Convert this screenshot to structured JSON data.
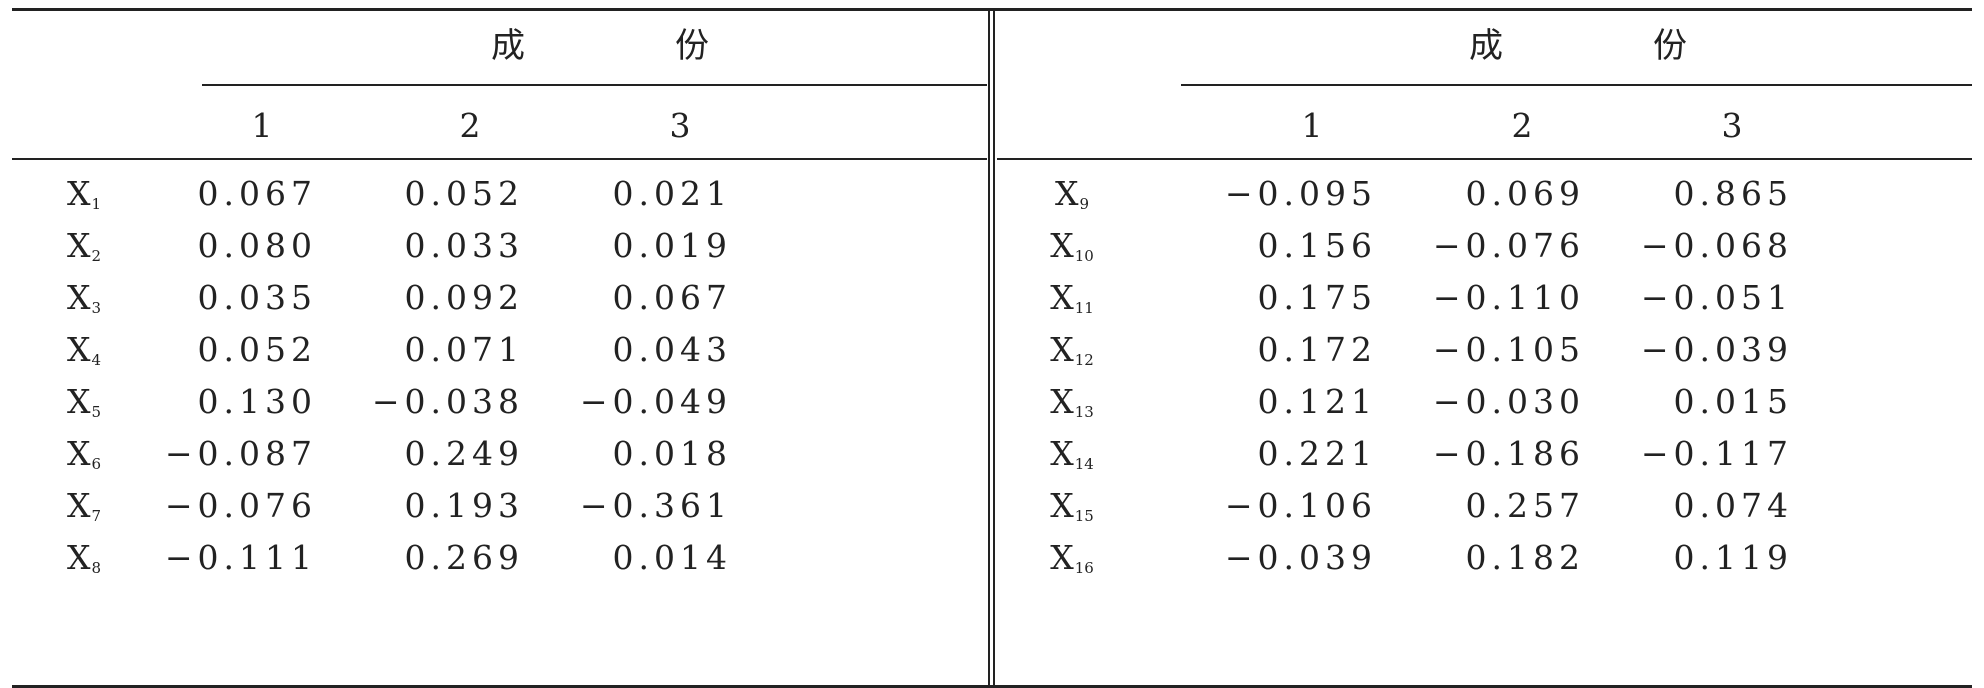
{
  "table": {
    "left": {
      "span_header": [
        "成",
        "份"
      ],
      "col_headers": [
        "1",
        "2",
        "3"
      ],
      "rows": [
        {
          "var": "X",
          "sub": "1",
          "values": [
            "0.067",
            "0.052",
            "0.021"
          ]
        },
        {
          "var": "X",
          "sub": "2",
          "values": [
            "0.080",
            "0.033",
            "0.019"
          ]
        },
        {
          "var": "X",
          "sub": "3",
          "values": [
            "0.035",
            "0.092",
            "0.067"
          ]
        },
        {
          "var": "X",
          "sub": "4",
          "values": [
            "0.052",
            "0.071",
            "0.043"
          ]
        },
        {
          "var": "X",
          "sub": "5",
          "values": [
            "0.130",
            "−0.038",
            "−0.049"
          ]
        },
        {
          "var": "X",
          "sub": "6",
          "values": [
            "−0.087",
            "0.249",
            "0.018"
          ]
        },
        {
          "var": "X",
          "sub": "7",
          "values": [
            "−0.076",
            "0.193",
            "−0.361"
          ]
        },
        {
          "var": "X",
          "sub": "8",
          "values": [
            "−0.111",
            "0.269",
            "0.014"
          ]
        }
      ]
    },
    "right": {
      "span_header": [
        "成",
        "份"
      ],
      "col_headers": [
        "1",
        "2",
        "3"
      ],
      "rows": [
        {
          "var": "X",
          "sub": "9",
          "values": [
            "−0.095",
            "0.069",
            "0.865"
          ]
        },
        {
          "var": "X",
          "sub": "10",
          "values": [
            "0.156",
            "−0.076",
            "−0.068"
          ]
        },
        {
          "var": "X",
          "sub": "11",
          "values": [
            "0.175",
            "−0.110",
            "−0.051"
          ]
        },
        {
          "var": "X",
          "sub": "12",
          "values": [
            "0.172",
            "−0.105",
            "−0.039"
          ]
        },
        {
          "var": "X",
          "sub": "13",
          "values": [
            "0.121",
            "−0.030",
            "0.015"
          ]
        },
        {
          "var": "X",
          "sub": "14",
          "values": [
            "0.221",
            "−0.186",
            "−0.117"
          ]
        },
        {
          "var": "X",
          "sub": "15",
          "values": [
            "−0.106",
            "0.257",
            "0.074"
          ]
        },
        {
          "var": "X",
          "sub": "16",
          "values": [
            "−0.039",
            "0.182",
            "0.119"
          ]
        }
      ]
    }
  }
}
